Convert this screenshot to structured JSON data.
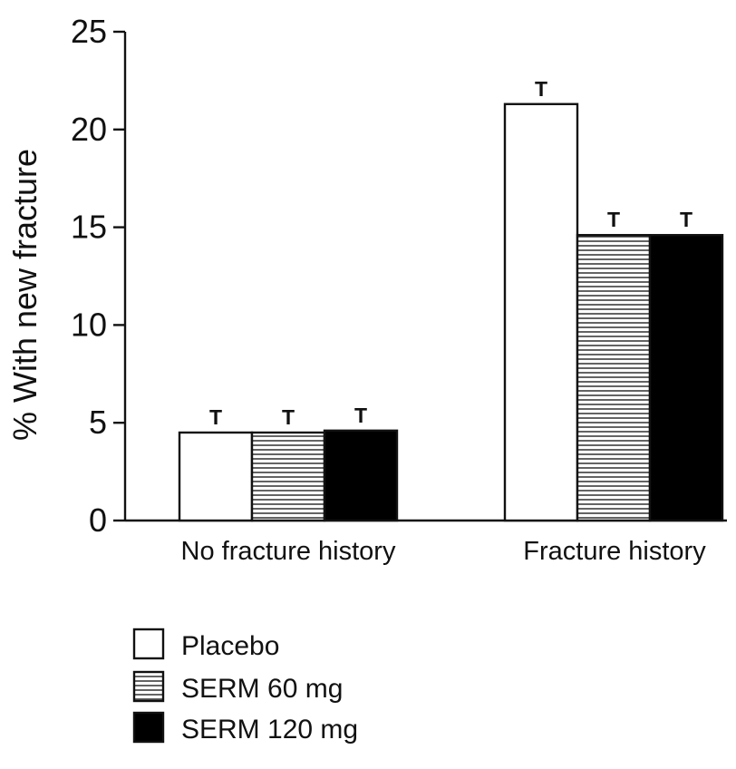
{
  "chart_data": {
    "type": "bar",
    "title": "",
    "xlabel": "",
    "ylabel": "% With new fracture",
    "ylim": [
      0,
      25
    ],
    "yticks": [
      0,
      5,
      10,
      15,
      20,
      25
    ],
    "categories": [
      "No fracture history",
      "Fracture history"
    ],
    "series": [
      {
        "name": "Placebo",
        "values": [
          4.5,
          21.3
        ],
        "fill": "#ffffff",
        "pattern": "none"
      },
      {
        "name": "SERM 60 mg",
        "values": [
          4.5,
          14.6
        ],
        "fill": "#ffffff",
        "pattern": "horizontal-lines"
      },
      {
        "name": "SERM 120 mg",
        "values": [
          4.6,
          14.6
        ],
        "fill": "#000000",
        "pattern": "none"
      }
    ],
    "error_marker": "T",
    "grid": false,
    "legend_position": "bottom-left"
  }
}
